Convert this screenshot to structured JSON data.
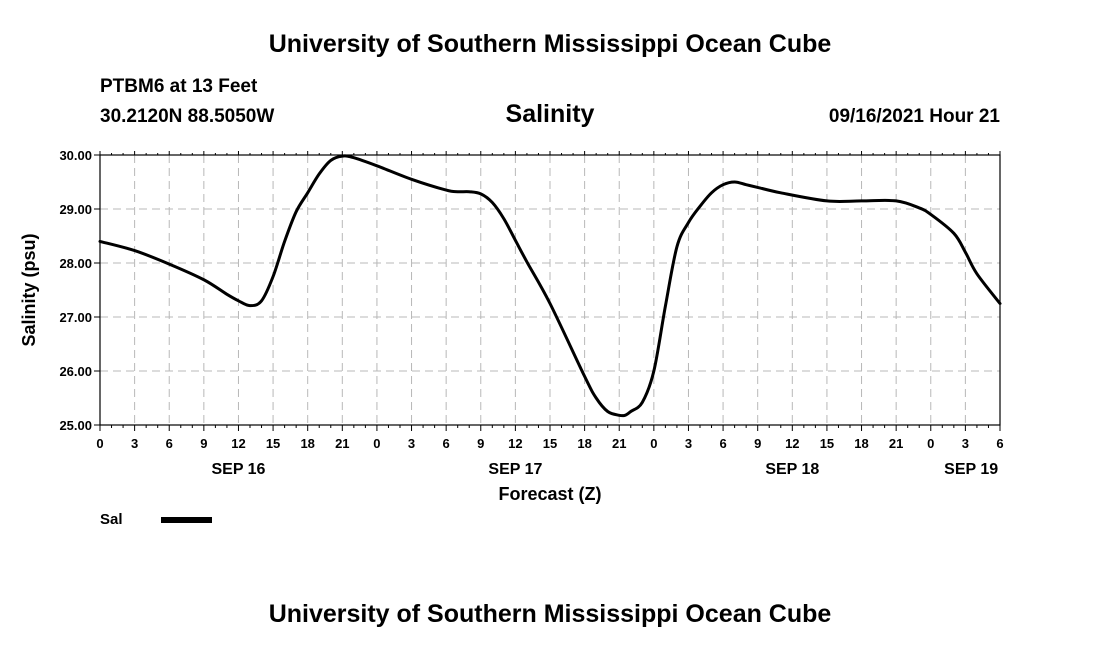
{
  "header": {
    "top_title": "University of Southern Mississippi Ocean Cube",
    "station": "PTBM6 at 13 Feet",
    "coordinates": "30.2120N  88.5050W",
    "datetime": "09/16/2021 Hour 21",
    "bottom_title": "University of Southern Mississippi Ocean Cube"
  },
  "chart_data": {
    "type": "line",
    "title": "Salinity",
    "xlabel": "Forecast (Z)",
    "ylabel": "Salinity (psu)",
    "ylim": [
      25.0,
      30.0
    ],
    "xlim_hours": [
      0,
      78
    ],
    "grid": true,
    "y_ticks": [
      25.0,
      26.0,
      27.0,
      28.0,
      29.0,
      30.0
    ],
    "y_tick_labels": [
      "25.00",
      "26.00",
      "27.00",
      "28.00",
      "29.00",
      "30.00"
    ],
    "x_ticks_hours": [
      0,
      3,
      6,
      9,
      12,
      15,
      18,
      21,
      24,
      27,
      30,
      33,
      36,
      39,
      42,
      45,
      48,
      51,
      54,
      57,
      60,
      63,
      66,
      69,
      72,
      75,
      78
    ],
    "x_tick_labels": [
      "0",
      "3",
      "6",
      "9",
      "12",
      "15",
      "18",
      "21",
      "0",
      "3",
      "6",
      "9",
      "12",
      "15",
      "18",
      "21",
      "0",
      "3",
      "6",
      "9",
      "12",
      "15",
      "18",
      "21",
      "0",
      "3",
      "6"
    ],
    "date_labels": [
      {
        "label": "SEP 16",
        "hour": 12
      },
      {
        "label": "SEP 17",
        "hour": 36
      },
      {
        "label": "SEP 18",
        "hour": 60
      },
      {
        "label": "SEP 19",
        "hour": 75.5
      }
    ],
    "legend": {
      "label": "Sal",
      "position": "bottom-left"
    },
    "series": [
      {
        "name": "Sal",
        "color": "#000000",
        "x": [
          0,
          3,
          6,
          9,
          11,
          12,
          13,
          14,
          15,
          16,
          17,
          18,
          19,
          20,
          21,
          22,
          24,
          27,
          30,
          31,
          32,
          33,
          34,
          35,
          36,
          37,
          39,
          42,
          43,
          44,
          45,
          45.5,
          46,
          47,
          48,
          49,
          50,
          51,
          52,
          53,
          54,
          55,
          56,
          57,
          59,
          63,
          66,
          69,
          71,
          72,
          74,
          75,
          76,
          78
        ],
        "y": [
          28.4,
          28.23,
          27.98,
          27.69,
          27.42,
          27.3,
          27.21,
          27.3,
          27.75,
          28.4,
          28.95,
          29.3,
          29.65,
          29.9,
          29.98,
          29.95,
          29.8,
          29.55,
          29.35,
          29.32,
          29.32,
          29.28,
          29.12,
          28.82,
          28.42,
          28.02,
          27.25,
          25.9,
          25.5,
          25.25,
          25.18,
          25.18,
          25.25,
          25.42,
          26.0,
          27.2,
          28.3,
          28.75,
          29.05,
          29.3,
          29.45,
          29.5,
          29.45,
          29.4,
          29.3,
          29.15,
          29.15,
          29.15,
          29.02,
          28.9,
          28.55,
          28.2,
          27.8,
          27.25
        ]
      }
    ]
  }
}
